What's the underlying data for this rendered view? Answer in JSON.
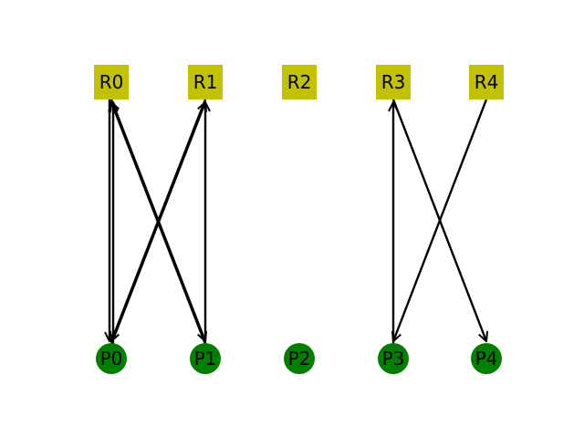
{
  "resources": [
    {
      "id": "R0",
      "label": "R0"
    },
    {
      "id": "R1",
      "label": "R1"
    },
    {
      "id": "R2",
      "label": "R2"
    },
    {
      "id": "R3",
      "label": "R3"
    },
    {
      "id": "R4",
      "label": "R4"
    }
  ],
  "processes": [
    {
      "id": "P0",
      "label": "P0"
    },
    {
      "id": "P1",
      "label": "P1"
    },
    {
      "id": "P2",
      "label": "P2"
    },
    {
      "id": "P3",
      "label": "P3"
    },
    {
      "id": "P4",
      "label": "P4"
    }
  ],
  "edges": [
    {
      "from": "R0",
      "to": "P0"
    },
    {
      "from": "P0",
      "to": "R0"
    },
    {
      "from": "R0",
      "to": "P1"
    },
    {
      "from": "P0",
      "to": "R1"
    },
    {
      "from": "R1",
      "to": "P0"
    },
    {
      "from": "P1",
      "to": "R1"
    },
    {
      "from": "P1",
      "to": "R0"
    },
    {
      "from": "P3",
      "to": "R3"
    },
    {
      "from": "R3",
      "to": "P4"
    },
    {
      "from": "R4",
      "to": "P3"
    }
  ],
  "colors": {
    "resource": "#c2c200",
    "process": "#007f00",
    "edge": "#000000",
    "background": "#ffffff"
  }
}
